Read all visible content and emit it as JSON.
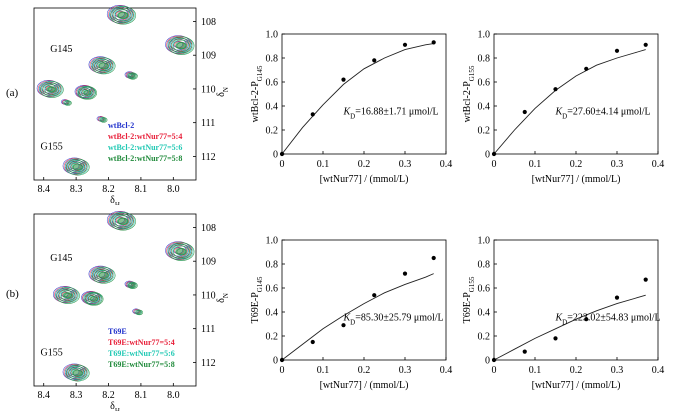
{
  "panel_labels": [
    "(a)",
    "(b)"
  ],
  "chart_data": [
    {
      "type": "scatter",
      "subtype": "2D NMR spectrum (contour)",
      "panel": "(a)",
      "xlabel": "δH",
      "ylabel": "δN",
      "xlim": [
        8.43,
        7.93
      ],
      "ylim": [
        107.6,
        112.7
      ],
      "xticks": [
        "8.4",
        "8.3",
        "8.2",
        "8.1",
        "8.0"
      ],
      "yticks": [
        "108",
        "109",
        "110",
        "111",
        "112"
      ],
      "peak_labels": [
        {
          "text": "G145",
          "x": 8.38,
          "y": 108.9
        },
        {
          "text": "G155",
          "x": 8.41,
          "y": 111.8
        }
      ],
      "legend": [
        {
          "text": "wtBcl-2",
          "color": "#2233cc"
        },
        {
          "text": "wtBcl-2:wtNur77=5:4",
          "color": "#e8203a"
        },
        {
          "text": "wtBcl-2:wtNur77=5:6",
          "color": "#21c9b4"
        },
        {
          "text": "wtBcl-2:wtNur77=5:8",
          "color": "#1f8a3a"
        }
      ],
      "peaks": [
        {
          "x": 8.16,
          "y": 107.8,
          "r": [
            4,
            7,
            9,
            11
          ]
        },
        {
          "x": 7.98,
          "y": 108.7,
          "r": [
            4,
            7,
            9,
            11
          ]
        },
        {
          "x": 8.22,
          "y": 109.3,
          "r": [
            4,
            6,
            8,
            10
          ]
        },
        {
          "x": 8.13,
          "y": 109.6,
          "r": [
            2,
            3,
            4
          ]
        },
        {
          "x": 8.38,
          "y": 110.0,
          "r": [
            3,
            6,
            8,
            10
          ]
        },
        {
          "x": 8.27,
          "y": 110.1,
          "r": [
            3,
            5,
            7,
            8
          ]
        },
        {
          "x": 8.33,
          "y": 110.4,
          "r": [
            2,
            3
          ]
        },
        {
          "x": 8.22,
          "y": 110.9,
          "r": [
            2,
            3
          ]
        },
        {
          "x": 8.3,
          "y": 112.3,
          "r": [
            4,
            6,
            8,
            10
          ]
        }
      ]
    },
    {
      "type": "scatter",
      "panel": "(a)",
      "xlabel": "[wtNur77] / (mmol/L)",
      "ylabel": "wtBcl-2-P",
      "ylabel_sub": "G145",
      "xlim": [
        0,
        0.4
      ],
      "ylim": [
        0,
        1.0
      ],
      "xticks": [
        "0",
        "0.1",
        "0.2",
        "0.3",
        "0.4"
      ],
      "yticks": [
        "0",
        "0.2",
        "0.4",
        "0.6",
        "0.8",
        "1.0"
      ],
      "annotation_symbol": "K",
      "annotation_sub": "D",
      "annotation": "=16.88±1.71 μmol/L",
      "points": [
        [
          0,
          0
        ],
        [
          0.075,
          0.33
        ],
        [
          0.15,
          0.62
        ],
        [
          0.225,
          0.78
        ],
        [
          0.3,
          0.91
        ],
        [
          0.37,
          0.93
        ]
      ],
      "fit": [
        [
          0,
          0
        ],
        [
          0.05,
          0.22
        ],
        [
          0.1,
          0.41
        ],
        [
          0.15,
          0.58
        ],
        [
          0.2,
          0.71
        ],
        [
          0.25,
          0.8
        ],
        [
          0.3,
          0.87
        ],
        [
          0.35,
          0.91
        ],
        [
          0.37,
          0.92
        ]
      ]
    },
    {
      "type": "scatter",
      "panel": "(a)",
      "xlabel": "[wtNur77] / (mmol/L)",
      "ylabel": "wtBcl-2-P",
      "ylabel_sub": "G155",
      "xlim": [
        0,
        0.4
      ],
      "ylim": [
        0,
        1.0
      ],
      "xticks": [
        "0",
        "0.1",
        "0.2",
        "0.3",
        "0.4"
      ],
      "yticks": [
        "0",
        "0.2",
        "0.4",
        "0.6",
        "0.8",
        "1.0"
      ],
      "annotation_symbol": "K",
      "annotation_sub": "D",
      "annotation": "=27.60±4.14 μmol/L",
      "points": [
        [
          0,
          0
        ],
        [
          0.075,
          0.35
        ],
        [
          0.15,
          0.54
        ],
        [
          0.225,
          0.71
        ],
        [
          0.3,
          0.86
        ],
        [
          0.37,
          0.91
        ]
      ],
      "fit": [
        [
          0,
          0
        ],
        [
          0.05,
          0.2
        ],
        [
          0.1,
          0.38
        ],
        [
          0.15,
          0.53
        ],
        [
          0.2,
          0.65
        ],
        [
          0.25,
          0.74
        ],
        [
          0.3,
          0.8
        ],
        [
          0.35,
          0.85
        ],
        [
          0.37,
          0.87
        ]
      ]
    },
    {
      "type": "scatter",
      "subtype": "2D NMR spectrum (contour)",
      "panel": "(b)",
      "xlabel": "δH",
      "ylabel": "δN",
      "xlim": [
        8.43,
        7.93
      ],
      "ylim": [
        107.6,
        112.7
      ],
      "xticks": [
        "8.4",
        "8.3",
        "8.2",
        "8.1",
        "8.0"
      ],
      "yticks": [
        "108",
        "109",
        "110",
        "111",
        "112"
      ],
      "peak_labels": [
        {
          "text": "G145",
          "x": 8.38,
          "y": 109.0
        },
        {
          "text": "G155",
          "x": 8.41,
          "y": 111.8
        }
      ],
      "legend": [
        {
          "text": "T69E",
          "color": "#2233cc"
        },
        {
          "text": "T69E:wtNur77=5:4",
          "color": "#e8203a"
        },
        {
          "text": "T69E:wtNur77=5:6",
          "color": "#21c9b4"
        },
        {
          "text": "T69E:wtNur77=5:8",
          "color": "#1f8a3a"
        }
      ],
      "peaks": [
        {
          "x": 8.16,
          "y": 107.8,
          "r": [
            4,
            7,
            9,
            11
          ]
        },
        {
          "x": 7.98,
          "y": 108.7,
          "r": [
            4,
            7,
            9,
            11
          ]
        },
        {
          "x": 8.22,
          "y": 109.4,
          "r": [
            4,
            6,
            8,
            10
          ]
        },
        {
          "x": 8.13,
          "y": 109.7,
          "r": [
            2,
            3,
            4
          ]
        },
        {
          "x": 8.33,
          "y": 110.0,
          "r": [
            3,
            6,
            8,
            10
          ]
        },
        {
          "x": 8.25,
          "y": 110.1,
          "r": [
            3,
            5,
            7,
            8
          ]
        },
        {
          "x": 8.11,
          "y": 110.5,
          "r": [
            2,
            3
          ]
        },
        {
          "x": 8.3,
          "y": 112.3,
          "r": [
            4,
            6,
            8,
            10
          ]
        }
      ]
    },
    {
      "type": "scatter",
      "panel": "(b)",
      "xlabel": "[wtNur77] / (mmol/L)",
      "ylabel": "T69E-P",
      "ylabel_sub": "G145",
      "xlim": [
        0,
        0.4
      ],
      "ylim": [
        0,
        1.0
      ],
      "xticks": [
        "0",
        "0.1",
        "0.2",
        "0.3",
        "0.4"
      ],
      "yticks": [
        "0",
        "0.2",
        "0.4",
        "0.6",
        "0.8",
        "1.0"
      ],
      "annotation_symbol": "K",
      "annotation_sub": "D",
      "annotation": "=85.30±25.79 μmol/L",
      "points": [
        [
          0,
          0
        ],
        [
          0.075,
          0.15
        ],
        [
          0.15,
          0.29
        ],
        [
          0.225,
          0.54
        ],
        [
          0.3,
          0.72
        ],
        [
          0.37,
          0.85
        ]
      ],
      "fit": [
        [
          0,
          0
        ],
        [
          0.05,
          0.13
        ],
        [
          0.1,
          0.26
        ],
        [
          0.15,
          0.37
        ],
        [
          0.2,
          0.47
        ],
        [
          0.25,
          0.56
        ],
        [
          0.3,
          0.63
        ],
        [
          0.35,
          0.69
        ],
        [
          0.37,
          0.72
        ]
      ]
    },
    {
      "type": "scatter",
      "panel": "(b)",
      "xlabel": "[wtNur77] / (mmol/L)",
      "ylabel": "T69E-P",
      "ylabel_sub": "G155",
      "xlim": [
        0,
        0.4
      ],
      "ylim": [
        0,
        1.0
      ],
      "xticks": [
        "0",
        "0.1",
        "0.2",
        "0.3",
        "0.4"
      ],
      "yticks": [
        "0",
        "0.2",
        "0.4",
        "0.6",
        "0.8",
        "1.0"
      ],
      "annotation_symbol": "K",
      "annotation_sub": "D",
      "annotation": "=223.02±54.83 μmol/L",
      "points": [
        [
          0,
          0
        ],
        [
          0.075,
          0.07
        ],
        [
          0.15,
          0.18
        ],
        [
          0.225,
          0.34
        ],
        [
          0.3,
          0.52
        ],
        [
          0.37,
          0.67
        ]
      ],
      "fit": [
        [
          0,
          0
        ],
        [
          0.05,
          0.09
        ],
        [
          0.1,
          0.18
        ],
        [
          0.15,
          0.26
        ],
        [
          0.2,
          0.34
        ],
        [
          0.25,
          0.41
        ],
        [
          0.3,
          0.47
        ],
        [
          0.35,
          0.52
        ],
        [
          0.37,
          0.54
        ]
      ]
    }
  ]
}
